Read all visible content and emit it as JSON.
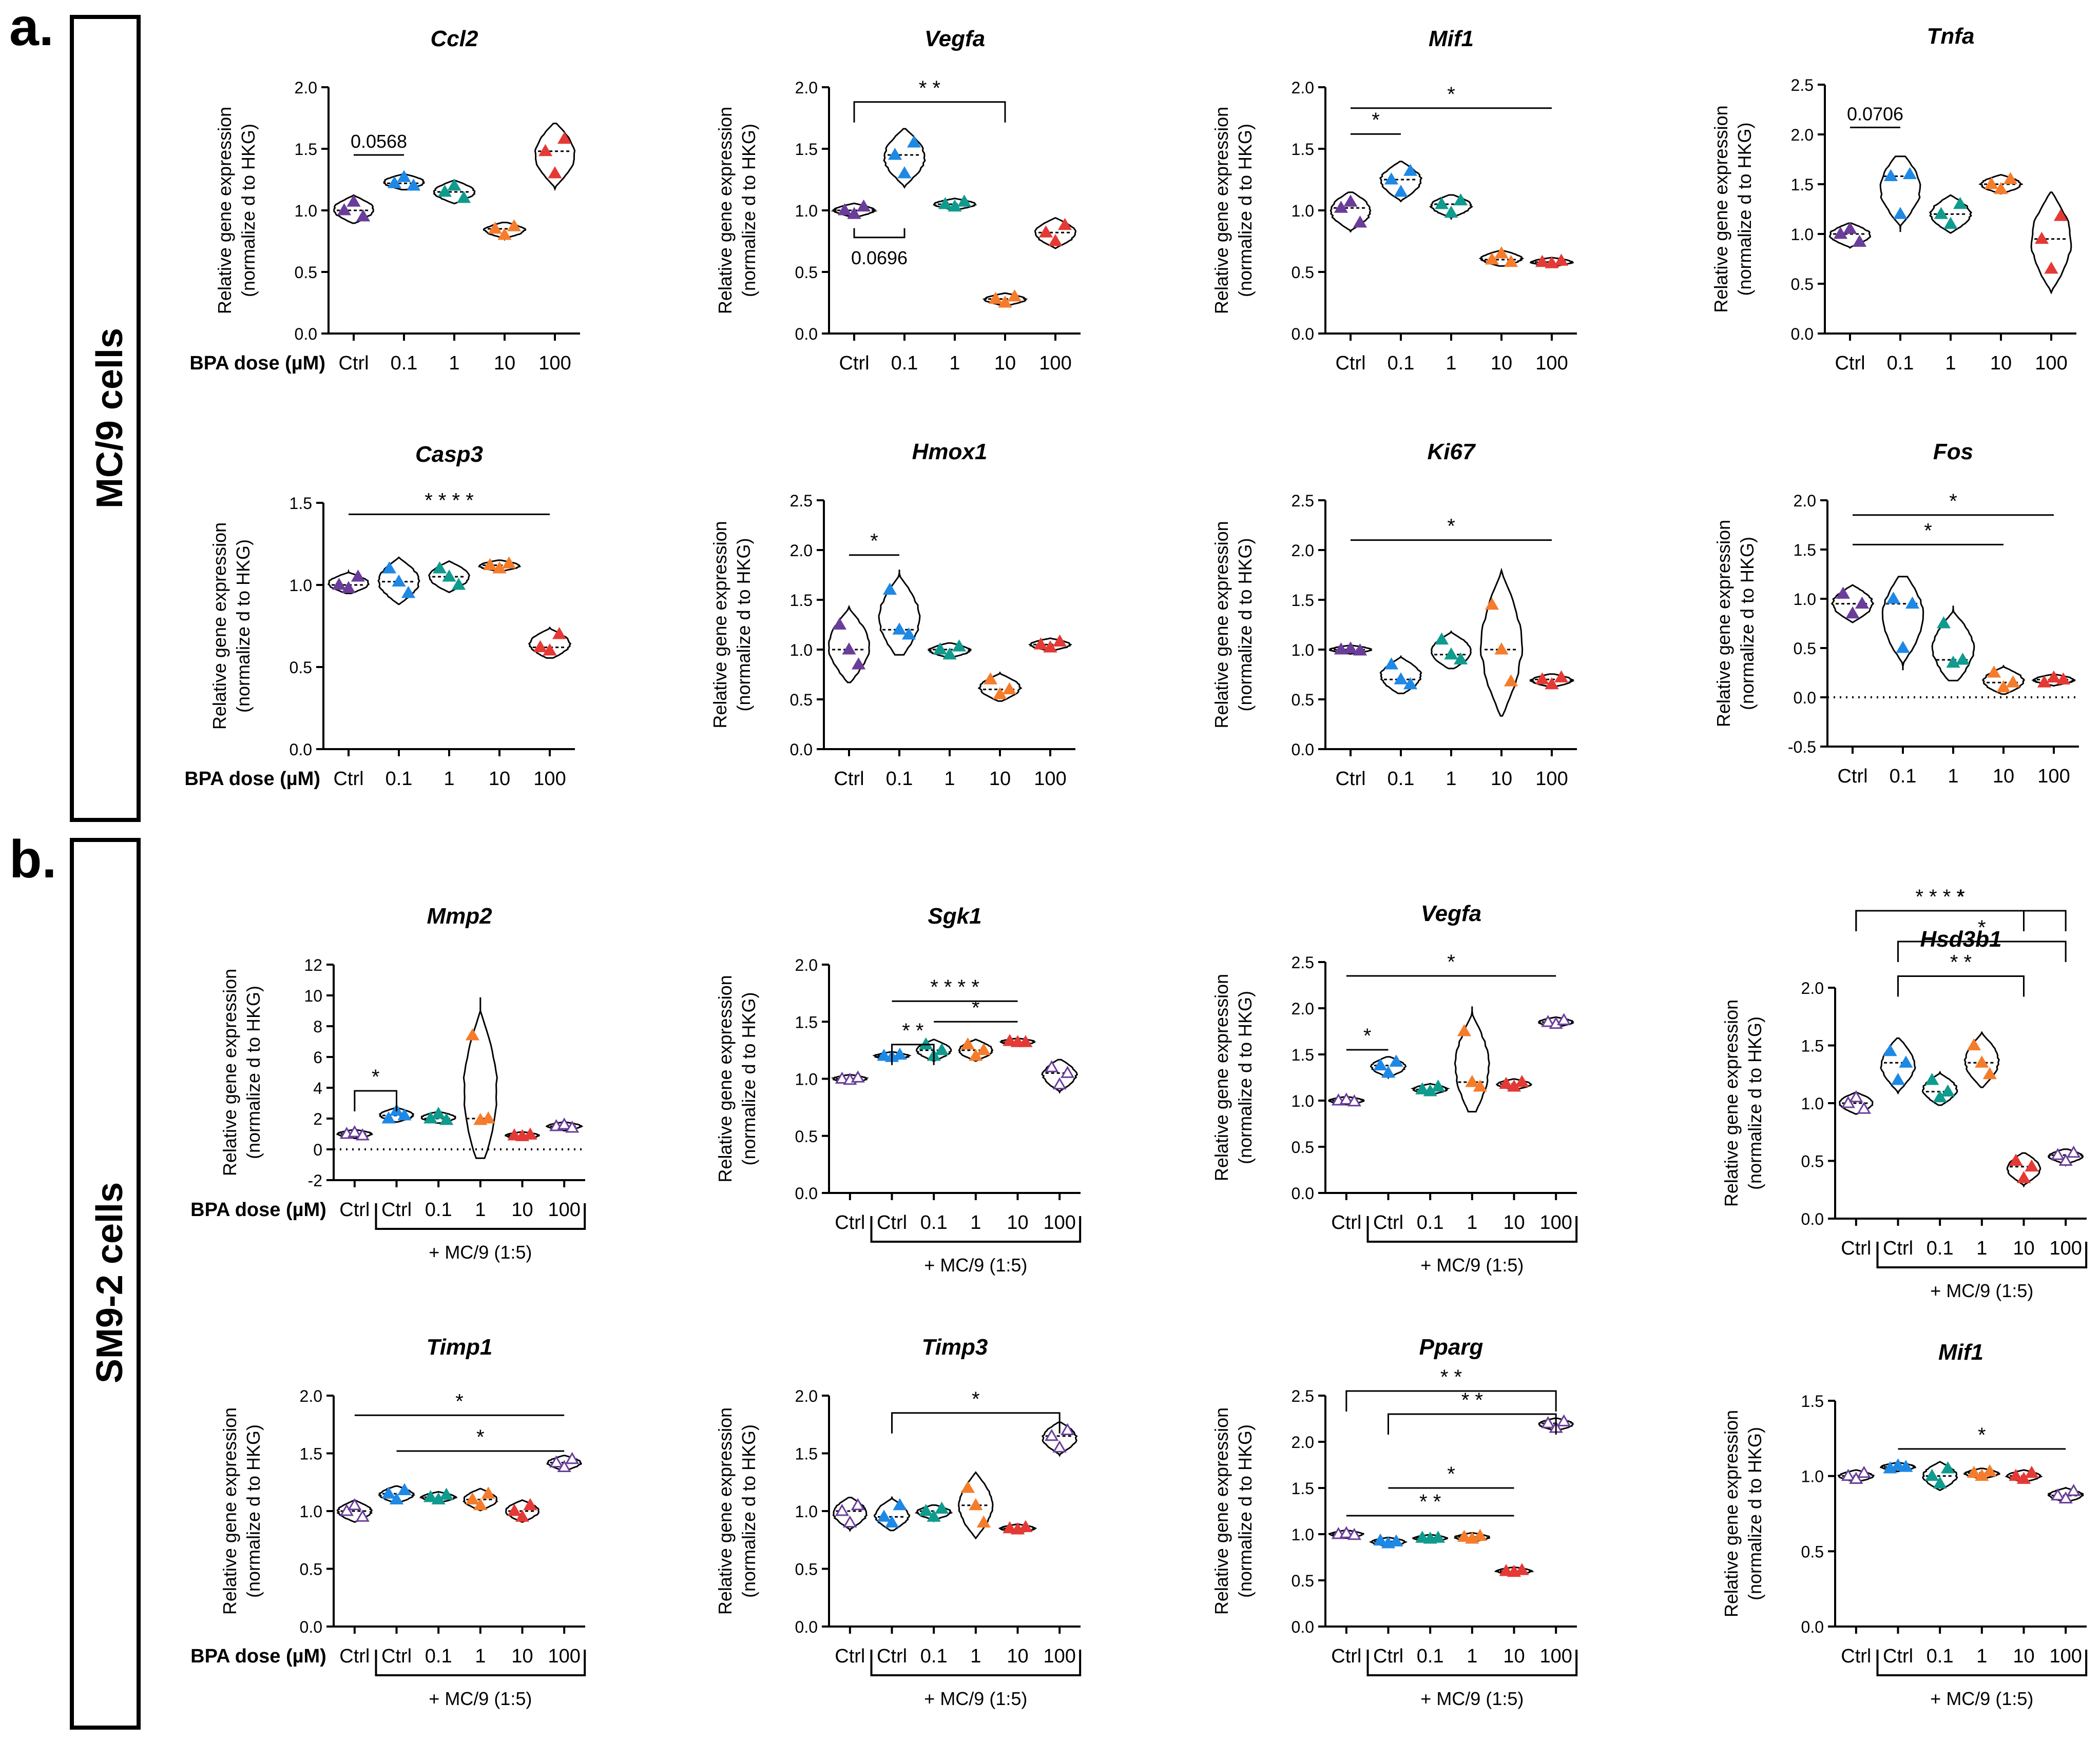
{
  "panels": [
    {
      "letter": "a.",
      "side_label": "MC/9 cells"
    },
    {
      "letter": "b.",
      "side_label": "SM9-2 cells"
    }
  ],
  "common": {
    "ylabel_line1": "Relative gene expression",
    "ylabel_line2": "(normalize d to HKG)",
    "dose_label": "BPA dose (µM)",
    "coculture_label": "+  MC/9 (1:5)"
  },
  "colors": {
    "ctrl": "#6a3d9a",
    "c0_1": "#1e88e5",
    "c1": "#0f9b8e",
    "c10": "#f57c2b",
    "c100": "#e53935",
    "ctrl_b": "#1e88e5"
  },
  "chart_data": [
    {
      "type": "violin",
      "title": "Ccl2",
      "categories": [
        "Ctrl",
        "0.1",
        "1",
        "10",
        "100"
      ],
      "ylim": [
        0,
        2
      ],
      "yticks": [
        "0.0",
        "0.5",
        "1.0",
        "1.5",
        "2.0"
      ],
      "values": [
        [
          1.0,
          1.07,
          0.95
        ],
        [
          1.22,
          1.27,
          1.2
        ],
        [
          1.15,
          1.2,
          1.1
        ],
        [
          0.85,
          0.8,
          0.87
        ],
        [
          1.48,
          1.3,
          1.58
        ]
      ],
      "annotations": [
        {
          "from": 0,
          "to": 1,
          "text": "0.0568",
          "y": 1.45,
          "style": "plain"
        }
      ]
    },
    {
      "type": "violin",
      "title": "Vegfa",
      "categories": [
        "Ctrl",
        "0.1",
        "1",
        "10",
        "100"
      ],
      "ylim": [
        0,
        2
      ],
      "yticks": [
        "0.0",
        "0.5",
        "1.0",
        "1.5",
        "2.0"
      ],
      "values": [
        [
          1.0,
          0.97,
          1.03
        ],
        [
          1.45,
          1.3,
          1.55
        ],
        [
          1.05,
          1.03,
          1.07
        ],
        [
          0.28,
          0.25,
          0.3
        ],
        [
          0.82,
          0.75,
          0.88
        ]
      ],
      "annotations": [
        {
          "from": 0,
          "to": 3,
          "text": "* *",
          "y": 1.88,
          "style": "bracket"
        },
        {
          "from": 0,
          "to": 1,
          "text": "0.0696",
          "y": 0.78,
          "style": "below"
        }
      ]
    },
    {
      "type": "violin",
      "title": "Mif1",
      "categories": [
        "Ctrl",
        "0.1",
        "1",
        "10",
        "100"
      ],
      "ylim": [
        0,
        2
      ],
      "yticks": [
        "0.0",
        "0.5",
        "1.0",
        "1.5",
        "2.0"
      ],
      "values": [
        [
          1.02,
          1.07,
          0.9
        ],
        [
          1.25,
          1.15,
          1.32
        ],
        [
          1.05,
          0.98,
          1.08
        ],
        [
          0.6,
          0.65,
          0.58
        ],
        [
          0.58,
          0.57,
          0.59
        ]
      ],
      "annotations": [
        {
          "from": 0,
          "to": 4,
          "text": "*",
          "y": 1.83,
          "style": "plain"
        },
        {
          "from": 0,
          "to": 1,
          "text": "*",
          "y": 1.62,
          "style": "plain"
        }
      ]
    },
    {
      "type": "violin",
      "title": "Tnfa",
      "categories": [
        "Ctrl",
        "0.1",
        "1",
        "10",
        "100"
      ],
      "ylim": [
        0,
        2.5
      ],
      "yticks": [
        "0.0",
        "0.5",
        "1.0",
        "1.5",
        "2.0",
        "2.5"
      ],
      "values": [
        [
          1.0,
          1.05,
          0.92
        ],
        [
          1.58,
          1.2,
          1.6
        ],
        [
          1.2,
          1.1,
          1.3
        ],
        [
          1.5,
          1.45,
          1.55
        ],
        [
          0.95,
          0.65,
          1.18
        ]
      ],
      "annotations": [
        {
          "from": 0,
          "to": 1,
          "text": "0.0706",
          "y": 2.07,
          "style": "plain"
        }
      ]
    },
    {
      "type": "violin",
      "title": "Casp3",
      "categories": [
        "Ctrl",
        "0.1",
        "1",
        "10",
        "100"
      ],
      "ylim": [
        0,
        1.5
      ],
      "yticks": [
        "0.0",
        "0.5",
        "1.0",
        "1.5"
      ],
      "values": [
        [
          1.0,
          0.98,
          1.05
        ],
        [
          1.1,
          1.02,
          0.95
        ],
        [
          1.1,
          1.05,
          1.0
        ],
        [
          1.12,
          1.1,
          1.13
        ],
        [
          0.62,
          0.6,
          0.7
        ]
      ],
      "annotations": [
        {
          "from": 0,
          "to": 4,
          "text": "* * * *",
          "y": 1.43,
          "style": "plain"
        }
      ]
    },
    {
      "type": "violin",
      "title": "Hmox1",
      "categories": [
        "Ctrl",
        "0.1",
        "1",
        "10",
        "100"
      ],
      "ylim": [
        0,
        2.5
      ],
      "yticks": [
        "0.0",
        "0.5",
        "1.0",
        "1.5",
        "2.0",
        "2.5"
      ],
      "values": [
        [
          1.25,
          1.0,
          0.85
        ],
        [
          1.6,
          1.2,
          1.15
        ],
        [
          1.0,
          0.95,
          1.03
        ],
        [
          0.7,
          0.55,
          0.6
        ],
        [
          1.05,
          1.02,
          1.08
        ]
      ],
      "annotations": [
        {
          "from": 0,
          "to": 1,
          "text": "*",
          "y": 1.95,
          "style": "plain"
        }
      ]
    },
    {
      "type": "violin",
      "title": "Ki67",
      "categories": [
        "Ctrl",
        "0.1",
        "1",
        "10",
        "100"
      ],
      "ylim": [
        0,
        2.5
      ],
      "yticks": [
        "0.0",
        "0.5",
        "1.0",
        "1.5",
        "2.0",
        "2.5"
      ],
      "values": [
        [
          1.0,
          1.01,
          0.99
        ],
        [
          0.85,
          0.7,
          0.65
        ],
        [
          1.1,
          0.95,
          0.9
        ],
        [
          1.45,
          1.0,
          0.68
        ],
        [
          0.7,
          0.65,
          0.72
        ]
      ],
      "annotations": [
        {
          "from": 0,
          "to": 4,
          "text": "*",
          "y": 2.1,
          "style": "plain"
        }
      ]
    },
    {
      "type": "violin",
      "title": "Fos",
      "categories": [
        "Ctrl",
        "0.1",
        "1",
        "10",
        "100"
      ],
      "ylim": [
        -0.5,
        2
      ],
      "yticks": [
        "-0.5",
        "0.0",
        "0.5",
        "1.0",
        "1.5",
        "2.0"
      ],
      "zero_line": true,
      "values": [
        [
          1.05,
          0.85,
          0.95
        ],
        [
          1.0,
          0.5,
          0.95
        ],
        [
          0.75,
          0.35,
          0.38
        ],
        [
          0.25,
          0.1,
          0.15
        ],
        [
          0.15,
          0.2,
          0.18
        ]
      ],
      "annotations": [
        {
          "from": 0,
          "to": 4,
          "text": "*",
          "y": 1.85,
          "style": "plain"
        },
        {
          "from": 0,
          "to": 3,
          "text": "*",
          "y": 1.55,
          "style": "plain"
        }
      ]
    },
    {
      "type": "violin",
      "title": "Mmp2",
      "categories": [
        "Ctrl",
        "Ctrl",
        "0.1",
        "1",
        "10",
        "100"
      ],
      "coculture": true,
      "ylim": [
        -2,
        12
      ],
      "yticks": [
        "-2",
        "0",
        "2",
        "4",
        "6",
        "8",
        "10",
        "12"
      ],
      "zero_line": true,
      "values": [
        [
          1.0,
          1.1,
          0.9
        ],
        [
          2.0,
          2.5,
          2.2
        ],
        [
          2.0,
          2.3,
          1.9
        ],
        [
          7.4,
          1.9,
          2.0
        ],
        [
          0.9,
          0.85,
          0.95
        ],
        [
          1.5,
          1.6,
          1.4
        ]
      ],
      "annotations": [
        {
          "from": 0,
          "to": 1,
          "text": "*",
          "y": 3.8,
          "style": "bracket"
        }
      ]
    },
    {
      "type": "violin",
      "title": "Sgk1",
      "categories": [
        "Ctrl",
        "Ctrl",
        "0.1",
        "1",
        "10",
        "100"
      ],
      "coculture": true,
      "ylim": [
        0,
        2
      ],
      "yticks": [
        "0.0",
        "0.5",
        "1.0",
        "1.5",
        "2.0"
      ],
      "values": [
        [
          1.0,
          0.99,
          1.01
        ],
        [
          1.2,
          1.19,
          1.21
        ],
        [
          1.3,
          1.2,
          1.25
        ],
        [
          1.3,
          1.2,
          1.25
        ],
        [
          1.33,
          1.32,
          1.32
        ],
        [
          1.1,
          0.95,
          1.05
        ]
      ],
      "annotations": [
        {
          "from": 1,
          "to": 4,
          "text": "* * * *",
          "y": 1.68,
          "style": "plain"
        },
        {
          "from": 2,
          "to": 4,
          "text": "*",
          "y": 1.5,
          "style": "plain"
        },
        {
          "from": 1,
          "to": 2,
          "text": "* *",
          "y": 1.3,
          "style": "bracket"
        }
      ]
    },
    {
      "type": "violin",
      "title": "Vegfa",
      "categories": [
        "Ctrl",
        "Ctrl",
        "0.1",
        "1",
        "10",
        "100"
      ],
      "coculture": true,
      "ylim": [
        0,
        2.5
      ],
      "yticks": [
        "0.0",
        "0.5",
        "1.0",
        "1.5",
        "2.0",
        "2.5"
      ],
      "values": [
        [
          1.0,
          1.01,
          0.99
        ],
        [
          1.38,
          1.3,
          1.42
        ],
        [
          1.12,
          1.1,
          1.15
        ],
        [
          1.75,
          1.2,
          1.15
        ],
        [
          1.18,
          1.15,
          1.2
        ],
        [
          1.85,
          1.83,
          1.87
        ]
      ],
      "annotations": [
        {
          "from": 0,
          "to": 5,
          "text": "*",
          "y": 2.35,
          "style": "plain"
        },
        {
          "from": 0,
          "to": 1,
          "text": "*",
          "y": 1.55,
          "style": "plain"
        }
      ]
    },
    {
      "type": "violin",
      "title": "Hsd3b1",
      "categories": [
        "Ctrl",
        "Ctrl",
        "0.1",
        "1",
        "10",
        "100"
      ],
      "coculture": true,
      "ylim": [
        0,
        2
      ],
      "yticks": [
        "0.0",
        "0.5",
        "1.0",
        "1.5",
        "2.0"
      ],
      "values": [
        [
          1.0,
          1.05,
          0.95
        ],
        [
          1.45,
          1.2,
          1.35
        ],
        [
          1.2,
          1.05,
          1.1
        ],
        [
          1.5,
          1.35,
          1.25
        ],
        [
          0.5,
          0.35,
          0.45
        ],
        [
          0.55,
          0.5,
          0.57
        ]
      ],
      "annotations": [
        {
          "from": 0,
          "to": 5,
          "text": "*",
          "y": 3.0,
          "style": "bracket"
        },
        {
          "from": 0,
          "to": 4,
          "text": "* * * *",
          "y": 2.72,
          "style": "bracket"
        },
        {
          "from": 1,
          "to": 5,
          "text": "*",
          "y": 2.4,
          "style": "bracket"
        },
        {
          "from": 1,
          "to": 4,
          "text": "* *",
          "y": 2.1,
          "style": "bracket"
        }
      ]
    },
    {
      "type": "violin",
      "title": "Timp1",
      "categories": [
        "Ctrl",
        "Ctrl",
        "0.1",
        "1",
        "10",
        "100"
      ],
      "coculture": true,
      "ylim": [
        0,
        2
      ],
      "yticks": [
        "0.0",
        "0.5",
        "1.0",
        "1.5",
        "2.0"
      ],
      "values": [
        [
          1.0,
          1.05,
          0.95
        ],
        [
          1.15,
          1.1,
          1.18
        ],
        [
          1.12,
          1.1,
          1.14
        ],
        [
          1.1,
          1.05,
          1.15
        ],
        [
          1.0,
          0.95,
          1.05
        ],
        [
          1.42,
          1.38,
          1.45
        ]
      ],
      "annotations": [
        {
          "from": 0,
          "to": 5,
          "text": "*",
          "y": 1.83,
          "style": "plain"
        },
        {
          "from": 1,
          "to": 5,
          "text": "*",
          "y": 1.52,
          "style": "plain"
        }
      ]
    },
    {
      "type": "violin",
      "title": "Timp3",
      "categories": [
        "Ctrl",
        "Ctrl",
        "0.1",
        "1",
        "10",
        "100"
      ],
      "coculture": true,
      "ylim": [
        0,
        2
      ],
      "yticks": [
        "0.0",
        "0.5",
        "1.0",
        "1.5",
        "2.0"
      ],
      "values": [
        [
          1.0,
          0.9,
          1.05
        ],
        [
          0.95,
          0.9,
          1.05
        ],
        [
          1.0,
          0.95,
          1.02
        ],
        [
          1.2,
          1.05,
          0.9
        ],
        [
          0.85,
          0.84,
          0.86
        ],
        [
          1.65,
          1.55,
          1.7
        ]
      ],
      "annotations": [
        {
          "from": 1,
          "to": 5,
          "text": "*",
          "y": 1.85,
          "style": "bracket"
        }
      ]
    },
    {
      "type": "violin",
      "title": "Pparg",
      "categories": [
        "Ctrl",
        "Ctrl",
        "0.1",
        "1",
        "10",
        "100"
      ],
      "coculture": true,
      "ylim": [
        0,
        2.5
      ],
      "yticks": [
        "0.0",
        "0.5",
        "1.0",
        "1.5",
        "2.0",
        "2.5"
      ],
      "values": [
        [
          1.0,
          1.01,
          0.99
        ],
        [
          0.93,
          0.9,
          0.92
        ],
        [
          0.96,
          0.95,
          0.96
        ],
        [
          0.97,
          0.95,
          0.98
        ],
        [
          0.6,
          0.59,
          0.61
        ],
        [
          2.2,
          2.15,
          2.22
        ]
      ],
      "annotations": [
        {
          "from": 0,
          "to": 5,
          "text": "* *",
          "y": 2.55,
          "style": "bracket"
        },
        {
          "from": 1,
          "to": 5,
          "text": "* *",
          "y": 2.3,
          "style": "bracket"
        },
        {
          "from": 1,
          "to": 4,
          "text": "*",
          "y": 1.5,
          "style": "plain"
        },
        {
          "from": 0,
          "to": 4,
          "text": "* *",
          "y": 1.2,
          "style": "plain"
        }
      ]
    },
    {
      "type": "violin",
      "title": "Mif1",
      "categories": [
        "Ctrl",
        "Ctrl",
        "0.1",
        "1",
        "10",
        "100"
      ],
      "coculture": true,
      "ylim": [
        0,
        1.5
      ],
      "yticks": [
        "0.0",
        "0.5",
        "1.0",
        "1.5"
      ],
      "values": [
        [
          1.0,
          0.98,
          1.02
        ],
        [
          1.05,
          1.07,
          1.06
        ],
        [
          1.0,
          0.95,
          1.05
        ],
        [
          1.02,
          1.0,
          1.03
        ],
        [
          1.0,
          0.98,
          1.02
        ],
        [
          0.87,
          0.85,
          0.9
        ]
      ],
      "annotations": [
        {
          "from": 1,
          "to": 5,
          "text": "*",
          "y": 1.18,
          "style": "plain"
        }
      ]
    }
  ]
}
